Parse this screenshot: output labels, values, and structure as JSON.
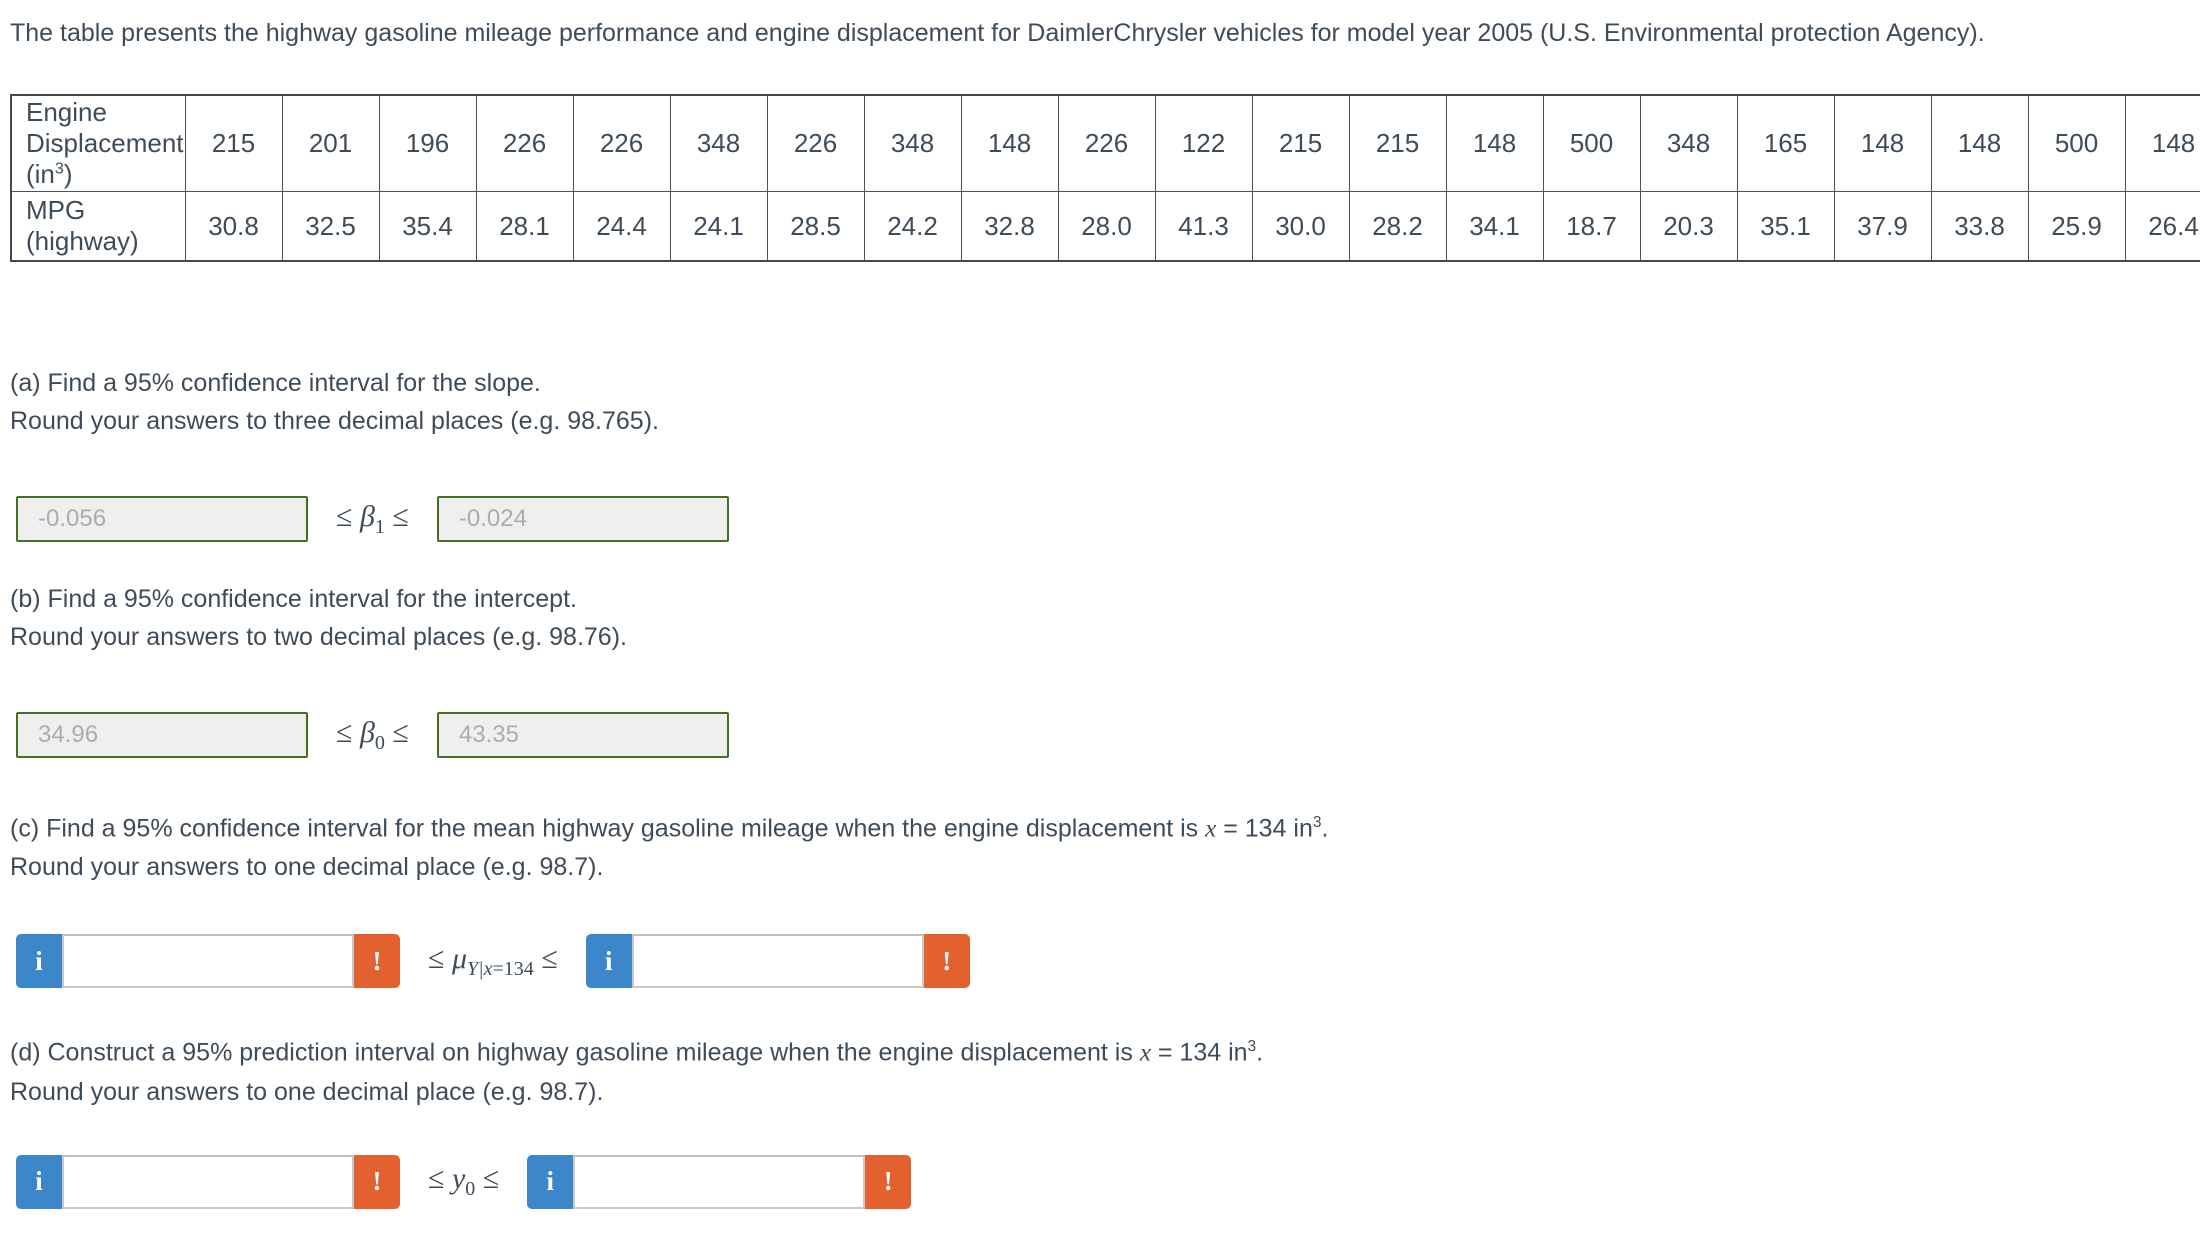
{
  "title": "The table presents the highway gasoline mileage performance and engine displacement for DaimlerChrysler vehicles for model year 2005 (U.S. Environmental protection Agency).",
  "table": {
    "row1_label_main": "Engine Displacement (in",
    "row1_label_sup": "3",
    "row1_label_close": ")",
    "row2_label": "MPG (highway)",
    "displacement": [
      "215",
      "201",
      "196",
      "226",
      "226",
      "348",
      "226",
      "348",
      "148",
      "226",
      "122",
      "215",
      "215",
      "148",
      "500",
      "348",
      "165",
      "148",
      "148",
      "500",
      "148"
    ],
    "mpg": [
      "30.8",
      "32.5",
      "35.4",
      "28.1",
      "24.4",
      "24.1",
      "28.5",
      "24.2",
      "32.8",
      "28.0",
      "41.3",
      "30.0",
      "28.2",
      "34.1",
      "18.7",
      "20.3",
      "35.1",
      "37.9",
      "33.8",
      "25.9",
      "26.4"
    ]
  },
  "colors": {
    "text": "#3e4c59",
    "answered_border_green": "#467021",
    "info_blue": "#3b87c9",
    "alert_orange": "#e2612e"
  },
  "part_a": {
    "question": "(a) Find a 95% confidence interval for the slope.",
    "instruction": "Round your answers to three decimal places (e.g. 98.765).",
    "lower_value": "-0.056",
    "upper_value": "-0.024",
    "leq": "≤",
    "symbol": "β",
    "symbol_sub_rest": "1"
  },
  "part_b": {
    "question": "(b) Find a 95% confidence interval for the intercept.",
    "instruction": "Round your answers to two decimal places (e.g. 98.76).",
    "lower_value": "34.96",
    "upper_value": "43.35",
    "leq": "≤",
    "symbol": "β",
    "symbol_sub_rest": "0"
  },
  "part_c": {
    "question_prefix": "(c) Find a 95% confidence interval for the mean highway gasoline mileage when the engine displacement is ",
    "question_var": "x",
    "question_mid": " = 134 in",
    "question_sup": "3",
    "question_end": ".",
    "instruction": "Round your answers to one decimal place (e.g. 98.7).",
    "lower_value": "",
    "upper_value": "",
    "leq": "≤",
    "symbol": "μ",
    "symbol_sub_var": "Y|x",
    "symbol_sub_rest": "=134",
    "info_label": "i",
    "alert_label": "!"
  },
  "part_d": {
    "question_prefix": "(d) Construct a 95% prediction interval on highway gasoline mileage when the engine displacement is ",
    "question_var": "x",
    "question_mid": " = 134 in",
    "question_sup": "3",
    "question_end": ".",
    "instruction": "Round your answers to one decimal place (e.g. 98.7).",
    "lower_value": "",
    "upper_value": "",
    "leq": "≤",
    "symbol": "y",
    "symbol_sub_var": "",
    "symbol_sub_rest": "0",
    "info_label": "i",
    "alert_label": "!"
  }
}
